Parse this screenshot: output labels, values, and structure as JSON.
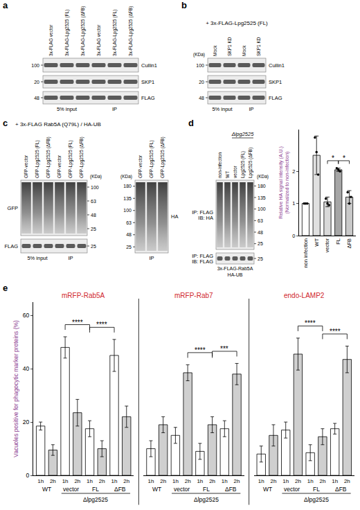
{
  "blots": [
    {
      "panel": "a",
      "lanes": [
        "3x-FLAG vector",
        "3x-FLAG-Lpg2525 (FL)",
        "3x-FLAG-Lpg2525 (ΔFB)",
        "3x-FLAG vector",
        "3x-FLAG-Lpg2525 (FL)",
        "3x-FLAG-Lpg2525 (ΔFB)"
      ],
      "groups": [
        {
          "label": "5% input",
          "lanes": [
            0,
            2
          ]
        },
        {
          "label": "IP",
          "lanes": [
            3,
            5
          ]
        }
      ],
      "rows": [
        {
          "label": "Cullin1",
          "markers": [
            100
          ]
        },
        {
          "label": "SKP1",
          "markers": [
            20
          ]
        },
        {
          "label": "FLAG",
          "markers": [
            48
          ]
        }
      ]
    },
    {
      "panel": "b",
      "header": "+ 3x-FLAG-Lpg2525 (FL)",
      "unit": "(KDa)",
      "lanes": [
        "Mock",
        "SKP1 KD",
        "Mock",
        "SKP1 KD"
      ],
      "groups": [
        {
          "label": "5% input",
          "lanes": [
            0,
            1
          ]
        },
        {
          "label": "IP",
          "lanes": [
            2,
            3
          ]
        }
      ],
      "rows": [
        {
          "label": "Cullin1",
          "markers": [
            100
          ]
        },
        {
          "label": "SKP1",
          "markers": [
            20
          ]
        },
        {
          "label": "FLAG",
          "markers": [
            48
          ]
        }
      ]
    },
    {
      "panel": "c",
      "header": "+ 3x-FLAG Rab5A (Q79L) / HA-UB",
      "unit": "(KDa)",
      "lanes": [
        "GFP-vector",
        "GFP-Lpg2525 (FL)",
        "GFP-Lpg2525 (ΔFB)",
        "GFP-vector",
        "GFP-Lpg2525 (FL)",
        "GFP-Lpg2525 (ΔFB)"
      ],
      "groups": [
        {
          "label": "5% input",
          "lanes": [
            0,
            2
          ]
        },
        {
          "label": "IP",
          "lanes": [
            3,
            5
          ]
        }
      ],
      "rows": [
        {
          "label": "GFP",
          "markers": [
            100,
            63,
            48,
            25
          ]
        },
        {
          "label": "FLAG",
          "markers": [
            25
          ]
        }
      ]
    },
    {
      "panel": "c",
      "unit": "(KDa)",
      "lanes": [
        "GFP-vector",
        "GFP-Lpg2525 (FL)",
        "GFP-Lpg2525 (ΔFB)"
      ],
      "groups": [
        {
          "label": "IP",
          "lanes": [
            0,
            2
          ]
        }
      ],
      "rows": [
        {
          "label": "HA",
          "markers": [
            180,
            135,
            100,
            63,
            48,
            25
          ]
        }
      ]
    },
    {
      "panel": "d",
      "unit": "(KDa)",
      "lanes": [
        "non-infection",
        "WT",
        "vector",
        "Lpg2525 (FL)",
        "Lpg2525 (ΔFB)"
      ],
      "groups": [
        {
          "label": "Δlpg2525",
          "lanes": [
            2,
            4
          ]
        }
      ],
      "rows": [
        {
          "label": [
            "IP: FLAG",
            "IB: HA"
          ],
          "markers": [
            180,
            135,
            100,
            63,
            48,
            25
          ]
        },
        {
          "label": [
            "IP: FLAG",
            "IB: FLAG"
          ],
          "markers": [
            25
          ]
        }
      ],
      "footer": [
        "3x-FLAG-Rab5A",
        "HA-UB"
      ]
    }
  ],
  "chart_data": [
    {
      "type": "bar",
      "panel": "d",
      "categories": [
        "non infection",
        "WT",
        "vector",
        "FL",
        "ΔFB"
      ],
      "values": [
        1,
        2.5,
        1.05,
        2.05,
        1.2
      ],
      "errors": [
        0,
        0.6,
        0.15,
        0.05,
        0.2
      ],
      "points": [
        [
          1,
          1,
          1
        ],
        [
          3.05,
          2.6,
          1.9
        ],
        [
          1.15,
          1.0,
          0.95
        ],
        [
          2.1,
          2.05,
          2.0
        ],
        [
          1.35,
          1.0,
          1.2
        ]
      ],
      "colors": [
        "#ffffff",
        "#e0e0e0",
        "#d9d9d9",
        "#a6a6a6",
        "#c9c9c9"
      ],
      "y_title": {
        "lines": [
          "Relative HA signal intensity (A.U.)",
          "(Normalized to non-infection)"
        ],
        "color": "#8a3b8f"
      },
      "ylim": [
        0,
        3.3
      ],
      "yticks": [
        0,
        1,
        2
      ],
      "significance": [
        {
          "between": [
            2,
            3
          ],
          "label": "*"
        },
        {
          "between": [
            3,
            4
          ],
          "label": "*"
        }
      ]
    },
    {
      "type": "bar",
      "panel": "e",
      "y_title": {
        "lines": [
          "Vacuoles positive for phagocytic marker proteins (%)"
        ],
        "color": "#8a3b8f"
      },
      "ylim": [
        0,
        65
      ],
      "yticks": [
        0,
        20,
        40,
        60
      ],
      "categories": [
        "1h",
        "2h",
        "1h",
        "2h",
        "1h",
        "2h",
        "1h",
        "2h"
      ],
      "conditions": [
        "WT",
        "vector",
        "FL",
        "ΔFB"
      ],
      "strain": {
        "label": "Δlpg2525",
        "conditions": [
          1,
          3
        ]
      },
      "colors": [
        "#ffffff",
        "#cfcfcf",
        "#ffffff",
        "#cfcfcf",
        "#ffffff",
        "#cfcfcf",
        "#ffffff",
        "#cfcfcf"
      ],
      "groups": [
        {
          "title": "mRFP-Rab5A",
          "color": "#d0262d",
          "values": [
            18.5,
            9.5,
            48,
            23.5,
            17.5,
            10,
            45,
            22
          ],
          "errors": [
            1.5,
            2,
            4,
            5,
            3,
            3,
            6,
            4
          ],
          "significance": [
            {
              "between": [
                2,
                4
              ],
              "label": "****"
            },
            {
              "between": [
                4,
                6
              ],
              "label": "****"
            }
          ]
        },
        {
          "title": "mRFP-Rab7",
          "color": "#d0262d",
          "values": [
            10,
            19,
            15,
            38.5,
            9,
            19,
            17.5,
            38
          ],
          "errors": [
            3,
            3,
            3,
            3,
            3,
            3,
            3,
            4
          ],
          "significance": [
            {
              "between": [
                3,
                5
              ],
              "label": "****"
            },
            {
              "between": [
                5,
                7
              ],
              "label": "***"
            }
          ]
        },
        {
          "title": "endo-LAMP2",
          "color": "#d0262d",
          "values": [
            8,
            15,
            17,
            45.5,
            8.5,
            14.5,
            17.5,
            43.5
          ],
          "errors": [
            3,
            4,
            3,
            6,
            3,
            3,
            2,
            5
          ],
          "significance": [
            {
              "between": [
                3,
                5
              ],
              "label": "****"
            },
            {
              "between": [
                5,
                7
              ],
              "label": "****"
            }
          ]
        }
      ]
    }
  ]
}
